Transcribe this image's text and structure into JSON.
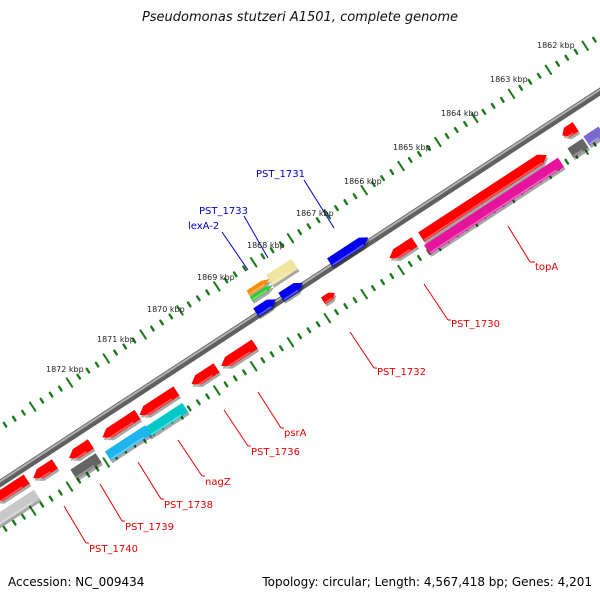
{
  "title": "Pseudomonas stutzeri A1501, complete genome",
  "footer": {
    "accession": "Accession: NC_009434",
    "summary": "Topology: circular; Length: 4,567,418 bp; Genes: 4,201"
  },
  "scale_labels": [
    "1862 kbp",
    "1863 kbp",
    "1864 kbp",
    "1865 kbp",
    "1866 kbp",
    "1867 kbp",
    "1868 kbp",
    "1869 kbp",
    "1870 kbp",
    "1871 kbp",
    "1872 kbp"
  ],
  "labels_blue": [
    "PST_1731",
    "PST_1733",
    "lexA-2"
  ],
  "labels_red": [
    "topA",
    "PST_1730",
    "PST_1732",
    "psrA",
    "PST_1736",
    "nagZ",
    "PST_1738",
    "PST_1739",
    "PST_1740"
  ],
  "colors": {
    "forward_gene": "#ff0000",
    "reverse_gene": "#ff0000",
    "topA": "#e6149b",
    "blue_gene": "#0000ee",
    "cyan_gene": "#00c8c8",
    "lightblue_gene": "#1eb4f0",
    "grey_gene": "#646464",
    "lightgrey_gene": "#c8c8c8",
    "yellow_gene": "#f0e6a0",
    "orange_gene": "#ff8c00",
    "green_gene": "#32c832",
    "purple_gene": "#7a6ad0",
    "backbone": "#808080",
    "ticks": "#1a7a1a",
    "label_red": "#e60000",
    "label_blue": "#0000cc"
  }
}
